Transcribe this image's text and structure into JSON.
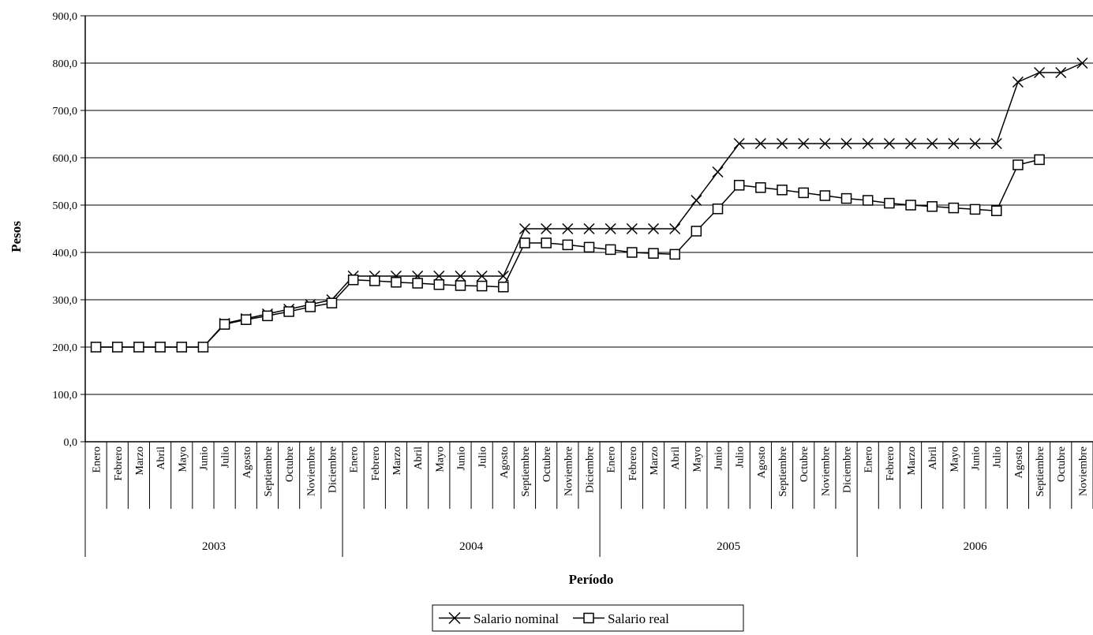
{
  "chart_data": {
    "type": "line",
    "xlabel": "Período",
    "ylabel": "Pesos",
    "ylim": [
      0,
      900
    ],
    "y_ticks": [
      "0,0",
      "100,0",
      "200,0",
      "300,0",
      "400,0",
      "500,0",
      "600,0",
      "700,0",
      "800,0",
      "900,0"
    ],
    "grid": true,
    "legend_position": "bottom-center",
    "years": [
      {
        "label": "2003",
        "months": 12
      },
      {
        "label": "2004",
        "months": 12
      },
      {
        "label": "2005",
        "months": 12
      },
      {
        "label": "2006",
        "months": 11
      }
    ],
    "categories": [
      "Enero",
      "Febrero",
      "Marzo",
      "Abril",
      "Mayo",
      "Junio",
      "Julio",
      "Agosto",
      "Septiembre",
      "Octubre",
      "Noviembre",
      "Diciembre",
      "Enero",
      "Febrero",
      "Marzo",
      "Abril",
      "Mayo",
      "Junio",
      "Julio",
      "Agosto",
      "Septiembre",
      "Octubre",
      "Noviembre",
      "Diciembre",
      "Enero",
      "Febrero",
      "Marzo",
      "Abril",
      "Mayo",
      "Junio",
      "Julio",
      "Agosto",
      "Septiembre",
      "Octubre",
      "Noviembre",
      "Diciembre",
      "Enero",
      "Febrero",
      "Marzo",
      "Abril",
      "Mayo",
      "Junio",
      "Julio",
      "Agosto",
      "Septiembre",
      "Octubre",
      "Noviembre"
    ],
    "series": [
      {
        "name": "Salario nominal",
        "marker": "x",
        "values": [
          200,
          200,
          200,
          200,
          200,
          200,
          250,
          260,
          270,
          280,
          290,
          300,
          350,
          350,
          350,
          350,
          350,
          350,
          350,
          350,
          450,
          450,
          450,
          450,
          450,
          450,
          450,
          450,
          510,
          570,
          630,
          630,
          630,
          630,
          630,
          630,
          630,
          630,
          630,
          630,
          630,
          630,
          630,
          760,
          780,
          780,
          800
        ]
      },
      {
        "name": "Salario real",
        "marker": "square",
        "values": [
          200,
          200,
          200,
          200,
          200,
          200,
          248,
          258,
          266,
          275,
          285,
          293,
          342,
          340,
          337,
          335,
          332,
          330,
          329,
          327,
          420,
          420,
          416,
          411,
          406,
          400,
          398,
          396,
          445,
          492,
          542,
          537,
          532,
          526,
          520,
          514,
          510,
          504,
          500,
          497,
          494,
          491,
          488,
          585,
          596,
          null,
          null
        ]
      }
    ]
  }
}
